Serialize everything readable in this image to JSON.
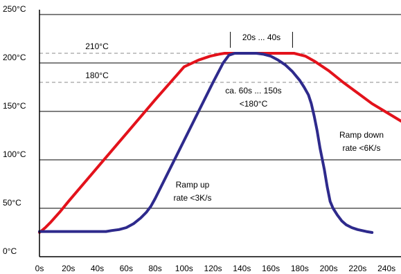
{
  "chart_data": {
    "type": "line",
    "title": "",
    "xlabel": "",
    "ylabel": "",
    "xlim": [
      0,
      250
    ],
    "ylim": [
      0,
      250
    ],
    "x_ticks": [
      0,
      20,
      40,
      60,
      80,
      100,
      120,
      140,
      160,
      180,
      200,
      220,
      240
    ],
    "x_tick_labels": [
      "0s",
      "20s",
      "40s",
      "60s",
      "80s",
      "100s",
      "120s",
      "140s",
      "160s",
      "180s",
      "200s",
      "220s",
      "240s"
    ],
    "y_ticks": [
      0,
      50,
      100,
      150,
      200,
      250
    ],
    "y_tick_labels": [
      "0°C",
      "50°C",
      "100°C",
      "150°C",
      "200°C",
      "250°C"
    ],
    "grid": "horizontal",
    "colors": {
      "red": "#e3121b",
      "blue": "#2e2a8c",
      "grid": "#000000",
      "dashed": "#888888"
    },
    "series": [
      {
        "color": "red",
        "x": [
          0,
          4,
          8,
          14,
          20,
          40,
          60,
          80,
          100,
          110,
          118,
          124,
          128,
          132,
          140,
          150,
          160,
          168,
          176,
          184,
          190,
          200,
          210,
          220,
          230,
          240,
          250
        ],
        "y": [
          25,
          30,
          36,
          46,
          57,
          92,
          127,
          162,
          196,
          203,
          207,
          209,
          210,
          210,
          210,
          210,
          210,
          210,
          210,
          207,
          202,
          192,
          180,
          169,
          158,
          149,
          140
        ]
      },
      {
        "color": "blue",
        "x": [
          0,
          10,
          20,
          30,
          40,
          46,
          50,
          55,
          60,
          65,
          70,
          74,
          77,
          80,
          90,
          100,
          110,
          120,
          127,
          131,
          135,
          140,
          145,
          150,
          155,
          160,
          165,
          170,
          175,
          180,
          183,
          186,
          188,
          190,
          192,
          194,
          197,
          199,
          201,
          203,
          206,
          209,
          212,
          216,
          220,
          226,
          230
        ],
        "y": [
          26,
          26,
          26,
          26,
          26,
          26,
          27,
          28,
          30,
          34,
          40,
          46,
          52,
          60,
          90,
          120,
          150,
          180,
          200,
          208,
          210,
          210,
          210,
          210,
          209,
          207,
          203,
          198,
          191,
          182,
          175,
          167,
          158,
          145,
          130,
          112,
          90,
          72,
          57,
          50,
          43,
          37,
          33,
          30,
          28,
          26,
          25
        ]
      }
    ],
    "reference_lines": [
      {
        "y": 210,
        "label": "210°C"
      },
      {
        "y": 180,
        "label": "180°C"
      }
    ],
    "annotations": {
      "dwell_time": "20s ... 40s",
      "dwell_marker_x": [
        132,
        175
      ],
      "time_above_line1": "ca. 60s ... 150s",
      "time_above_line2": "<180°C",
      "ramp_up_line1": "Ramp up",
      "ramp_up_line2": "rate <3K/s",
      "ramp_down_line1": "Ramp down",
      "ramp_down_line2": "rate <6K/s"
    }
  }
}
